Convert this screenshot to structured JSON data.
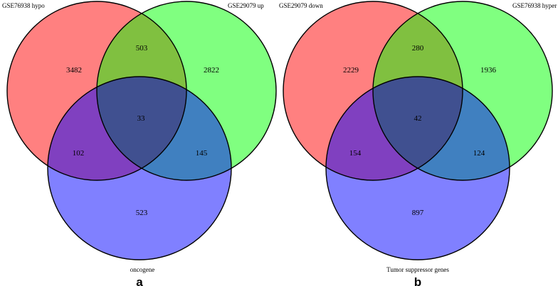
{
  "panels": [
    {
      "letter": "a",
      "set_labels": {
        "top_left": "GSE76938  hypo",
        "top_right": "GSE29079 up",
        "bottom": "oncogene"
      },
      "counts": {
        "left_only": "3482",
        "left_right": "503",
        "right_only": "2822",
        "center": "33",
        "left_bottom": "102",
        "right_bottom": "145",
        "bottom_only": "523"
      }
    },
    {
      "letter": "b",
      "set_labels": {
        "top_left": "GSE29079 down",
        "top_right": "GSE76938 hyper",
        "bottom": "Tumor suppressor genes"
      },
      "counts": {
        "left_only": "2229",
        "left_right": "280",
        "right_only": "1936",
        "center": "42",
        "left_bottom": "154",
        "right_bottom": "124",
        "bottom_only": "897"
      }
    }
  ],
  "colors": {
    "set_left": "#ff8080",
    "set_right": "#80ff80",
    "set_bottom": "#8080ff",
    "left_right": "#80c040",
    "left_bottom": "#8040c0",
    "right_bottom": "#4080c0",
    "center": "#405090",
    "outline": "#000000"
  }
}
